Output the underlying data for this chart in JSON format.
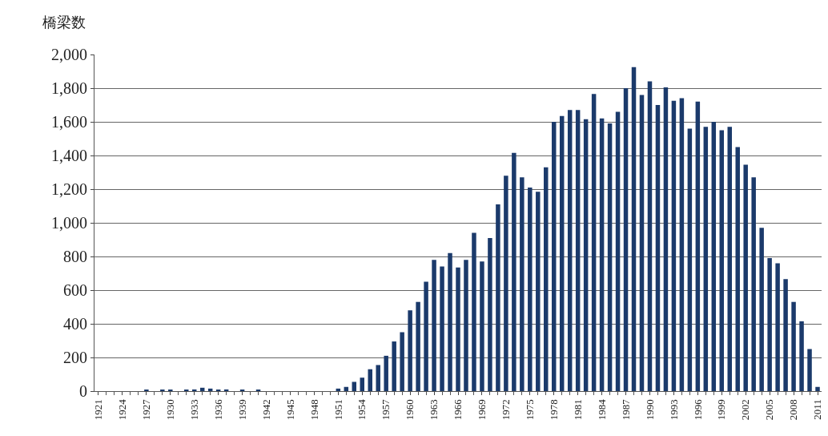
{
  "chart_data": {
    "type": "bar",
    "ylabel": "橋梁数",
    "categories": [
      "1921",
      null,
      null,
      "1924",
      null,
      null,
      "1927",
      null,
      null,
      "1930",
      null,
      null,
      "1933",
      null,
      null,
      "1936",
      null,
      null,
      "1939",
      null,
      null,
      "1942",
      null,
      null,
      "1945",
      null,
      null,
      "1948",
      null,
      null,
      "1951",
      null,
      null,
      "1954",
      null,
      null,
      "1957",
      null,
      null,
      "1960",
      null,
      null,
      "1963",
      null,
      null,
      "1966",
      null,
      null,
      "1969",
      null,
      null,
      "1972",
      null,
      null,
      "1975",
      null,
      null,
      "1978",
      null,
      null,
      "1981",
      null,
      null,
      "1984",
      null,
      null,
      "1987",
      null,
      null,
      "1990",
      null,
      null,
      "1993",
      null,
      null,
      "1996",
      null,
      null,
      "1999",
      null,
      null,
      "2002",
      null,
      null,
      "2005",
      null,
      null,
      "2008",
      null,
      null,
      "2011"
    ],
    "values": [
      0,
      0,
      0,
      0,
      0,
      0,
      5,
      0,
      5,
      5,
      0,
      5,
      10,
      20,
      15,
      8,
      10,
      0,
      5,
      0,
      5,
      0,
      0,
      0,
      0,
      0,
      0,
      0,
      0,
      0,
      15,
      25,
      55,
      80,
      130,
      155,
      210,
      295,
      350,
      480,
      530,
      650,
      780,
      740,
      820,
      735,
      780,
      940,
      770,
      910,
      1110,
      1280,
      1415,
      1270,
      1210,
      1185,
      1330,
      1600,
      1635,
      1670,
      1670,
      1615,
      1765,
      1620,
      1590,
      1660,
      1800,
      1925,
      1760,
      1840,
      1700,
      1805,
      1725,
      1740,
      1560,
      1720,
      1570,
      1600,
      1550,
      1570,
      1450,
      1345,
      1270,
      970,
      790,
      760,
      665,
      530,
      415,
      250,
      25
    ],
    "color": "#1b3a6b",
    "ylim": [
      0,
      2000
    ],
    "yticks": [
      {
        "value": 0,
        "label": "0"
      },
      {
        "value": 200,
        "label": "200"
      },
      {
        "value": 400,
        "label": "400"
      },
      {
        "value": 600,
        "label": "600"
      },
      {
        "value": 800,
        "label": "800"
      },
      {
        "value": 1000,
        "label": "1,000"
      },
      {
        "value": 1200,
        "label": "1,200"
      },
      {
        "value": 1400,
        "label": "1,400"
      },
      {
        "value": 1600,
        "label": "1,600"
      },
      {
        "value": 1800,
        "label": "1,800"
      },
      {
        "value": 2000,
        "label": "2,000"
      }
    ],
    "grid": "y"
  }
}
